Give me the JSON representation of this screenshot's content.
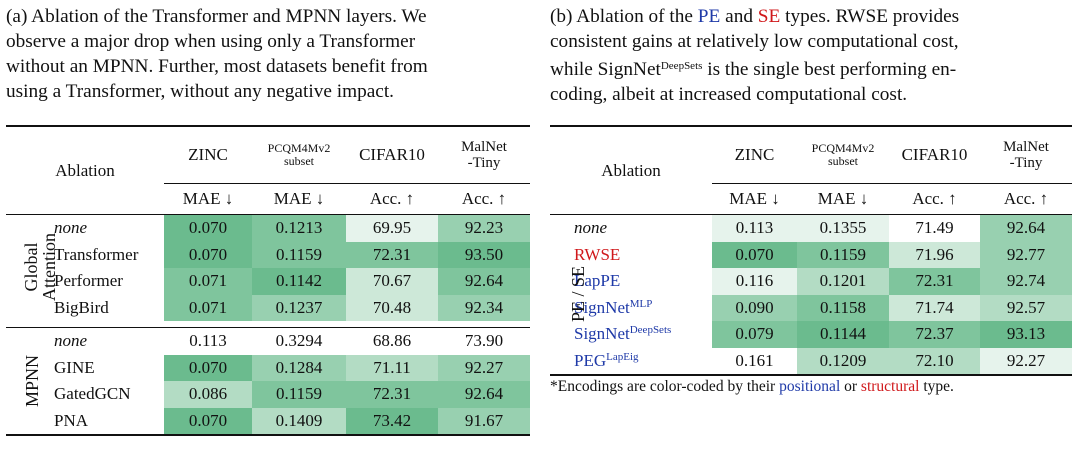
{
  "panel_a": {
    "caption_lines": [
      "(a) Ablation of the Transformer and MPNN layers. We",
      "observe a major drop when using only a Transformer",
      "without an MPNN. Further, most datasets benefit from",
      "using a Transformer, without any negative impact."
    ],
    "table": {
      "ablation_header": "Ablation",
      "datasets": {
        "zinc": "ZINC",
        "pcqm_line1": "PCQM4Mv2",
        "pcqm_line2": "subset",
        "cifar": "CIFAR10",
        "malnet_line1": "MalNet",
        "malnet_line2": "-Tiny"
      },
      "metrics": [
        "MAE ↓",
        "MAE ↓",
        "Acc. ↑",
        "Acc. ↑"
      ],
      "groups": [
        {
          "label_line1": "Global",
          "label_line2": "Attention",
          "rows": [
            {
              "name": "none",
              "values": [
                "0.070",
                "0.1213",
                "69.95",
                "92.23"
              ],
              "shade": [
                6,
                5,
                1,
                4
              ]
            },
            {
              "name": "Transformer",
              "values": [
                "0.070",
                "0.1159",
                "72.31",
                "93.50"
              ],
              "shade": [
                6,
                5,
                5,
                6
              ]
            },
            {
              "name": "Performer",
              "values": [
                "0.071",
                "0.1142",
                "70.67",
                "92.64"
              ],
              "shade": [
                5,
                6,
                2,
                5
              ]
            },
            {
              "name": "BigBird",
              "values": [
                "0.071",
                "0.1237",
                "70.48",
                "92.34"
              ],
              "shade": [
                5,
                4,
                2,
                4
              ]
            }
          ]
        },
        {
          "label_line1": "MPNN",
          "label_line2": "",
          "rows": [
            {
              "name": "none",
              "values": [
                "0.113",
                "0.3294",
                "68.86",
                "73.90"
              ],
              "shade": [
                0,
                0,
                0,
                0
              ]
            },
            {
              "name": "GINE",
              "values": [
                "0.070",
                "0.1284",
                "71.11",
                "92.27"
              ],
              "shade": [
                6,
                4,
                3,
                4
              ]
            },
            {
              "name": "GatedGCN",
              "values": [
                "0.086",
                "0.1159",
                "72.31",
                "92.64"
              ],
              "shade": [
                3,
                5,
                5,
                5
              ]
            },
            {
              "name": "PNA",
              "values": [
                "0.070",
                "0.1409",
                "73.42",
                "91.67"
              ],
              "shade": [
                6,
                3,
                6,
                4
              ]
            }
          ]
        }
      ]
    }
  },
  "panel_b": {
    "caption": {
      "l1_a": "(b) Ablation of the ",
      "l1_pe": "PE",
      "l1_b": " and ",
      "l1_se": "SE",
      "l1_c": " types. RWSE provides",
      "l2": "consistent gains at relatively low computational cost,",
      "l3_a": "while SignNet",
      "l3_sup": "DeepSets",
      "l3_b": " is the single best performing en-",
      "l4": "coding, albeit at increased computational cost."
    },
    "table": {
      "ablation_header": "Ablation",
      "datasets": {
        "zinc": "ZINC",
        "pcqm_line1": "PCQM4Mv2",
        "pcqm_line2": "subset",
        "cifar": "CIFAR10",
        "malnet_line1": "MalNet",
        "malnet_line2": "-Tiny"
      },
      "metrics": [
        "MAE ↓",
        "MAE ↓",
        "Acc. ↑",
        "Acc. ↑"
      ],
      "group_label": "PE / SE",
      "rows": [
        {
          "name": "none",
          "sup": "",
          "color": "#111111",
          "italic": true,
          "values": [
            "0.113",
            "0.1355",
            "71.49",
            "92.64"
          ],
          "shade": [
            1,
            1,
            0,
            4
          ]
        },
        {
          "name": "RWSE",
          "sup": "",
          "color": "#d0181b",
          "italic": false,
          "values": [
            "0.070",
            "0.1159",
            "71.96",
            "92.77"
          ],
          "shade": [
            6,
            5,
            2,
            4
          ]
        },
        {
          "name": "LapPE",
          "sup": "",
          "color": "#1f3aa8",
          "italic": false,
          "values": [
            "0.116",
            "0.1201",
            "72.31",
            "92.74"
          ],
          "shade": [
            1,
            3,
            5,
            4
          ]
        },
        {
          "name": "SignNet",
          "sup": "MLP",
          "color": "#1f3aa8",
          "italic": false,
          "values": [
            "0.090",
            "0.1158",
            "71.74",
            "92.57"
          ],
          "shade": [
            4,
            5,
            2,
            3
          ]
        },
        {
          "name": "SignNet",
          "sup": "DeepSets",
          "color": "#1f3aa8",
          "italic": false,
          "values": [
            "0.079",
            "0.1144",
            "72.37",
            "93.13"
          ],
          "shade": [
            5,
            6,
            5,
            6
          ]
        },
        {
          "name": "PEG",
          "sup": "LapEig",
          "color": "#1f3aa8",
          "italic": false,
          "values": [
            "0.161",
            "0.1209",
            "72.10",
            "92.27"
          ],
          "shade": [
            0,
            3,
            3,
            1
          ]
        }
      ]
    },
    "footnote": {
      "a": "*Encodings are color-coded by their ",
      "pos": "positional",
      "b": " or ",
      "str": "structural",
      "c": " type."
    }
  }
}
